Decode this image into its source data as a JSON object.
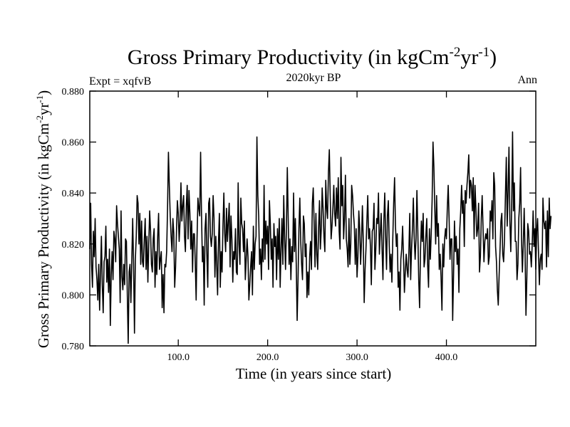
{
  "chart_data": {
    "type": "line",
    "title": "Gross Primary Productivity (in kgCm",
    "title_sup1": "-2",
    "title_mid": "yr",
    "title_sup2": "-1",
    "title_end": ")",
    "subtitle": "2020kyr BP",
    "left_note": "Expt = xqfvB",
    "right_note": "Ann",
    "xlabel": "Time (in years since start)",
    "ylabel": "Gross Primary Productivity (in kgCm",
    "ylabel_sup1": "-2",
    "ylabel_mid": "yr",
    "ylabel_sup2": "-1",
    "ylabel_end": ")",
    "xlim": [
      1,
      500
    ],
    "ylim": [
      0.78,
      0.88
    ],
    "xticks": [
      100,
      200,
      300,
      400
    ],
    "xtick_labels": [
      "100.0",
      "200.0",
      "300.0",
      "400.0"
    ],
    "yticks": [
      0.78,
      0.8,
      0.82,
      0.84,
      0.86,
      0.88
    ],
    "ytick_labels": [
      "0.780",
      "0.800",
      "0.820",
      "0.840",
      "0.860",
      "0.880"
    ],
    "series": [
      {
        "name": "Gross Primary Productivity",
        "color": "#000000",
        "x_start": 1,
        "x_step": 1,
        "values": [
          0.818,
          0.836,
          0.812,
          0.803,
          0.825,
          0.815,
          0.83,
          0.811,
          0.806,
          0.798,
          0.812,
          0.794,
          0.808,
          0.823,
          0.804,
          0.793,
          0.813,
          0.815,
          0.827,
          0.805,
          0.814,
          0.801,
          0.818,
          0.788,
          0.808,
          0.817,
          0.806,
          0.825,
          0.822,
          0.813,
          0.835,
          0.828,
          0.823,
          0.818,
          0.797,
          0.833,
          0.807,
          0.802,
          0.812,
          0.804,
          0.822,
          0.821,
          0.8,
          0.781,
          0.809,
          0.812,
          0.797,
          0.813,
          0.83,
          0.812,
          0.785,
          0.814,
          0.823,
          0.839,
          0.836,
          0.82,
          0.832,
          0.812,
          0.829,
          0.813,
          0.811,
          0.822,
          0.83,
          0.81,
          0.823,
          0.805,
          0.82,
          0.833,
          0.825,
          0.812,
          0.809,
          0.822,
          0.826,
          0.803,
          0.817,
          0.808,
          0.823,
          0.832,
          0.81,
          0.814,
          0.817,
          0.795,
          0.808,
          0.793,
          0.812,
          0.811,
          0.817,
          0.834,
          0.856,
          0.843,
          0.831,
          0.823,
          0.817,
          0.83,
          0.824,
          0.803,
          0.811,
          0.825,
          0.837,
          0.832,
          0.821,
          0.829,
          0.844,
          0.829,
          0.835,
          0.839,
          0.823,
          0.817,
          0.835,
          0.843,
          0.822,
          0.841,
          0.832,
          0.818,
          0.829,
          0.809,
          0.824,
          0.824,
          0.813,
          0.798,
          0.822,
          0.838,
          0.834,
          0.831,
          0.856,
          0.832,
          0.813,
          0.819,
          0.796,
          0.826,
          0.832,
          0.816,
          0.803,
          0.836,
          0.838,
          0.823,
          0.819,
          0.824,
          0.839,
          0.83,
          0.807,
          0.823,
          0.812,
          0.8,
          0.821,
          0.832,
          0.803,
          0.817,
          0.809,
          0.827,
          0.84,
          0.824,
          0.817,
          0.834,
          0.821,
          0.829,
          0.836,
          0.811,
          0.831,
          0.822,
          0.805,
          0.817,
          0.814,
          0.826,
          0.809,
          0.808,
          0.844,
          0.82,
          0.812,
          0.838,
          0.828,
          0.826,
          0.817,
          0.829,
          0.806,
          0.814,
          0.822,
          0.815,
          0.798,
          0.804,
          0.811,
          0.817,
          0.8,
          0.827,
          0.81,
          0.82,
          0.823,
          0.862,
          0.839,
          0.831,
          0.812,
          0.818,
          0.806,
          0.822,
          0.813,
          0.843,
          0.814,
          0.829,
          0.82,
          0.827,
          0.81,
          0.837,
          0.828,
          0.814,
          0.822,
          0.803,
          0.828,
          0.819,
          0.823,
          0.806,
          0.826,
          0.814,
          0.83,
          0.803,
          0.818,
          0.83,
          0.812,
          0.839,
          0.822,
          0.81,
          0.826,
          0.85,
          0.83,
          0.812,
          0.822,
          0.806,
          0.819,
          0.813,
          0.84,
          0.817,
          0.83,
          0.812,
          0.79,
          0.806,
          0.826,
          0.838,
          0.821,
          0.812,
          0.806,
          0.831,
          0.828,
          0.815,
          0.82,
          0.799,
          0.809,
          0.8,
          0.815,
          0.821,
          0.81,
          0.836,
          0.842,
          0.828,
          0.811,
          0.832,
          0.816,
          0.81,
          0.826,
          0.837,
          0.818,
          0.826,
          0.842,
          0.834,
          0.823,
          0.817,
          0.845,
          0.834,
          0.83,
          0.848,
          0.857,
          0.839,
          0.822,
          0.827,
          0.834,
          0.843,
          0.832,
          0.827,
          0.842,
          0.83,
          0.846,
          0.825,
          0.818,
          0.854,
          0.835,
          0.843,
          0.822,
          0.83,
          0.847,
          0.822,
          0.818,
          0.811,
          0.83,
          0.812,
          0.82,
          0.843,
          0.839,
          0.832,
          0.827,
          0.812,
          0.826,
          0.807,
          0.815,
          0.833,
          0.826,
          0.812,
          0.821,
          0.835,
          0.821,
          0.797,
          0.81,
          0.818,
          0.829,
          0.839,
          0.822,
          0.826,
          0.819,
          0.804,
          0.825,
          0.826,
          0.836,
          0.81,
          0.818,
          0.83,
          0.828,
          0.84,
          0.816,
          0.824,
          0.832,
          0.818,
          0.806,
          0.829,
          0.84,
          0.823,
          0.81,
          0.831,
          0.837,
          0.82,
          0.809,
          0.816,
          0.805,
          0.822,
          0.836,
          0.846,
          0.827,
          0.819,
          0.824,
          0.803,
          0.809,
          0.794,
          0.814,
          0.818,
          0.827,
          0.815,
          0.801,
          0.809,
          0.816,
          0.81,
          0.807,
          0.817,
          0.832,
          0.806,
          0.818,
          0.826,
          0.838,
          0.822,
          0.814,
          0.822,
          0.841,
          0.825,
          0.806,
          0.795,
          0.817,
          0.829,
          0.821,
          0.832,
          0.811,
          0.814,
          0.823,
          0.83,
          0.812,
          0.803,
          0.826,
          0.814,
          0.824,
          0.837,
          0.86,
          0.85,
          0.834,
          0.82,
          0.839,
          0.823,
          0.828,
          0.81,
          0.816,
          0.807,
          0.794,
          0.82,
          0.811,
          0.822,
          0.826,
          0.822,
          0.834,
          0.843,
          0.83,
          0.814,
          0.822,
          0.822,
          0.79,
          0.808,
          0.829,
          0.817,
          0.823,
          0.812,
          0.818,
          0.801,
          0.826,
          0.833,
          0.843,
          0.832,
          0.837,
          0.819,
          0.841,
          0.836,
          0.843,
          0.848,
          0.855,
          0.838,
          0.845,
          0.843,
          0.833,
          0.846,
          0.822,
          0.843,
          0.834,
          0.823,
          0.826,
          0.836,
          0.809,
          0.815,
          0.83,
          0.839,
          0.826,
          0.813,
          0.821,
          0.824,
          0.822,
          0.826,
          0.812,
          0.815,
          0.833,
          0.829,
          0.837,
          0.822,
          0.848,
          0.843,
          0.819,
          0.813,
          0.802,
          0.796,
          0.808,
          0.818,
          0.829,
          0.832,
          0.816,
          0.813,
          0.822,
          0.839,
          0.854,
          0.827,
          0.841,
          0.858,
          0.829,
          0.817,
          0.834,
          0.864,
          0.833,
          0.844,
          0.821,
          0.821,
          0.806,
          0.812,
          0.83,
          0.836,
          0.85,
          0.822,
          0.809,
          0.82,
          0.834,
          0.817,
          0.792,
          0.807,
          0.828,
          0.825,
          0.816,
          0.817,
          0.811,
          0.82,
          0.833,
          0.819,
          0.826,
          0.81,
          0.825,
          0.83,
          0.817,
          0.804,
          0.814,
          0.816,
          0.81,
          0.838,
          0.829,
          0.826,
          0.829,
          0.811,
          0.833,
          0.815,
          0.838,
          0.826,
          0.831
        ]
      }
    ]
  }
}
